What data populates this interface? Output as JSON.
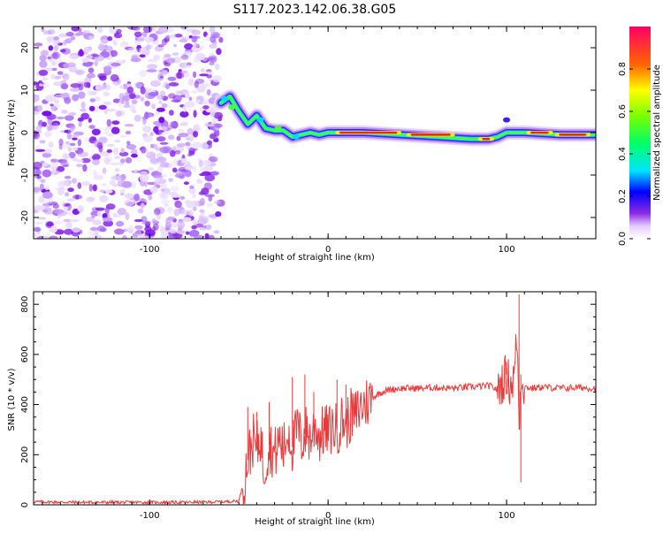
{
  "title": "S117.2023.142.06.38.G05",
  "chart_data": [
    {
      "type": "heatmap",
      "xlabel": "Height of straight line (km)",
      "ylabel": "Frequency (Hz)",
      "xlim": [
        -165,
        150
      ],
      "ylim": [
        -25,
        25
      ],
      "xticks": [
        -100,
        0,
        100
      ],
      "yticks": [
        -20,
        -10,
        0,
        10,
        20
      ],
      "colorbar": {
        "label": "Normalized spectral amplitude",
        "range": [
          0.0,
          1.0
        ],
        "ticks": [
          0.0,
          0.2,
          0.4,
          0.6,
          0.8
        ]
      },
      "ridge": [
        [
          -60,
          7
        ],
        [
          -55,
          8.5
        ],
        [
          -50,
          5
        ],
        [
          -45,
          2
        ],
        [
          -40,
          4
        ],
        [
          -35,
          1
        ],
        [
          -30,
          0.5
        ],
        [
          -25,
          0.5
        ],
        [
          -20,
          -1
        ],
        [
          -15,
          -0.5
        ],
        [
          -10,
          0
        ],
        [
          -5,
          -0.5
        ],
        [
          0,
          0
        ],
        [
          20,
          0
        ],
        [
          40,
          -0.5
        ],
        [
          60,
          -1
        ],
        [
          80,
          -1.5
        ],
        [
          90,
          -1.5
        ],
        [
          95,
          -1
        ],
        [
          100,
          0
        ],
        [
          110,
          0
        ],
        [
          130,
          -0.5
        ],
        [
          150,
          -0.5
        ]
      ],
      "noise_region": [
        -165,
        -60
      ]
    },
    {
      "type": "line",
      "xlabel": "Height of straight line (km)",
      "ylabel": "SNR (10 * v/v)",
      "xlim": [
        -165,
        150
      ],
      "ylim": [
        0,
        850
      ],
      "xticks": [
        -100,
        0,
        100
      ],
      "yticks": [
        0,
        200,
        400,
        600,
        800
      ],
      "color": "#e83a3a",
      "series": [
        {
          "x": [
            -165,
            -140,
            -120,
            -100,
            -80,
            -60,
            -50,
            -47,
            -45,
            -42,
            -40,
            -38,
            -36,
            -33,
            -30,
            -27,
            -25,
            -22,
            -20,
            -17,
            -15,
            -12,
            -10,
            -7,
            -5,
            -2,
            0,
            3,
            5,
            8,
            10,
            13,
            15,
            18,
            20,
            25,
            30,
            35,
            40,
            50,
            60,
            70,
            80,
            90,
            95,
            100,
            102,
            104,
            106,
            107,
            108,
            110,
            115,
            120,
            130,
            140,
            150
          ],
          "y": [
            12,
            10,
            10,
            10,
            10,
            12,
            15,
            100,
            180,
            260,
            220,
            280,
            140,
            240,
            200,
            260,
            220,
            300,
            230,
            310,
            250,
            300,
            260,
            320,
            270,
            300,
            290,
            310,
            300,
            340,
            320,
            360,
            350,
            390,
            400,
            430,
            450,
            460,
            465,
            465,
            468,
            465,
            470,
            475,
            460,
            520,
            480,
            500,
            680,
            300,
            520,
            470,
            465,
            470,
            465,
            468,
            465
          ]
        }
      ],
      "spikes": [
        [
          -45,
          390
        ],
        [
          -40,
          370
        ],
        [
          -33,
          410
        ],
        [
          -20,
          510
        ],
        [
          -13,
          520
        ],
        [
          -8,
          450
        ],
        [
          5,
          500
        ],
        [
          10,
          480
        ],
        [
          100,
          570
        ],
        [
          103,
          450
        ],
        [
          107,
          840
        ],
        [
          108,
          90
        ]
      ]
    }
  ]
}
